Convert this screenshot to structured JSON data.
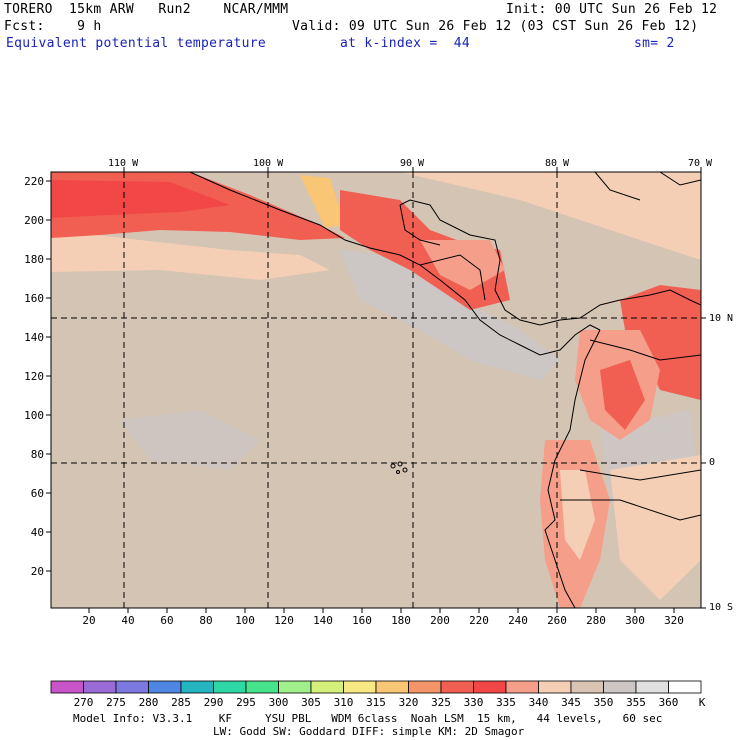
{
  "header": {
    "line1_left": "TORERO  15km ARW   Run2    NCAR/MMM",
    "line1_right": "Init: 00 UTC Sun 26 Feb 12",
    "line2_left": "Fcst:    9 h",
    "line2_right": "Valid: 09 UTC Sun 26 Feb 12 (03 CST Sun 26 Feb 12)",
    "field_name": "Equivalent potential temperature",
    "level": "at k-index =  44",
    "smoothing": "sm= 2"
  },
  "map": {
    "lon_labels": [
      "110 W",
      "100 W",
      "90 W",
      "80 W",
      "70 W"
    ],
    "lat_labels": [
      "10 N",
      "0",
      "10 S"
    ],
    "y_ticks": [
      "220",
      "200",
      "180",
      "160",
      "140",
      "120",
      "100",
      "80",
      "60",
      "40",
      "20"
    ],
    "x_ticks": [
      "20",
      "40",
      "60",
      "80",
      "100",
      "120",
      "140",
      "160",
      "180",
      "200",
      "220",
      "240",
      "260",
      "280",
      "300",
      "320"
    ]
  },
  "colorbar": {
    "levels": [
      "270",
      "275",
      "280",
      "285",
      "290",
      "295",
      "300",
      "305",
      "310",
      "315",
      "320",
      "325",
      "330",
      "335",
      "340",
      "345",
      "350",
      "355",
      "360"
    ],
    "unit": "K",
    "colors": [
      "#c755c9",
      "#9a6ad6",
      "#7b78e0",
      "#4f86e3",
      "#25b5c0",
      "#2fd7a4",
      "#45e38a",
      "#9ff08c",
      "#d4f07a",
      "#f7e884",
      "#f8c674",
      "#f49469",
      "#f15f53",
      "#f24747",
      "#f59f8a",
      "#f4cfb5",
      "#d9c4b3",
      "#ccc6c4",
      "#e0e0e0",
      "#ffffff"
    ]
  },
  "footer": {
    "line1": "Model Info: V3.3.1    KF     YSU PBL   WDM 6class  Noah LSM  15 km,   44 levels,   60 sec",
    "line2": "LW: Godd SW: Goddard DIFF: simple KM: 2D Smagor"
  }
}
